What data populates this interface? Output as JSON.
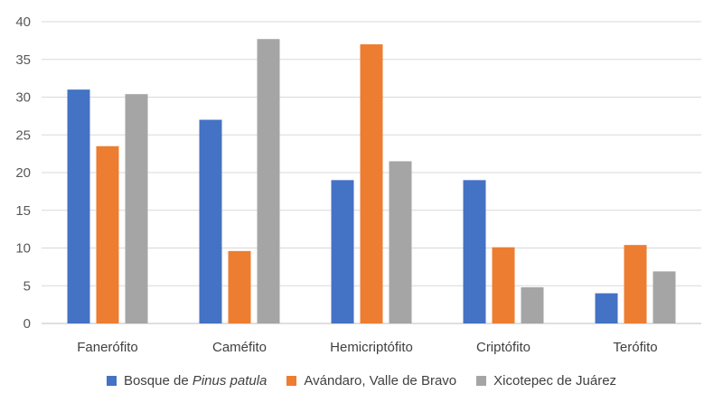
{
  "chart_data": {
    "type": "bar",
    "categories": [
      "Faneróﬁto",
      "Caméﬁto",
      "Hemicriptóﬁto",
      "Criptóﬁto",
      "Teróﬁto"
    ],
    "series": [
      {
        "name_prefix": "Bosque de ",
        "name_italic": "Pinus patula",
        "color": "#4472C4",
        "values": [
          31,
          27,
          19,
          19,
          4
        ]
      },
      {
        "name": "Avándaro, Valle de Bravo",
        "color": "#ED7D31",
        "values": [
          23.5,
          9.6,
          37,
          10.1,
          10.4
        ]
      },
      {
        "name": "Xicotepec de Juárez",
        "color": "#A5A5A5",
        "values": [
          30.4,
          37.7,
          21.5,
          4.8,
          6.9
        ]
      }
    ],
    "ylim": [
      0,
      40
    ],
    "yticks": [
      0,
      5,
      10,
      15,
      20,
      25,
      30,
      35,
      40
    ],
    "grid": true,
    "legend_position": "bottom"
  }
}
